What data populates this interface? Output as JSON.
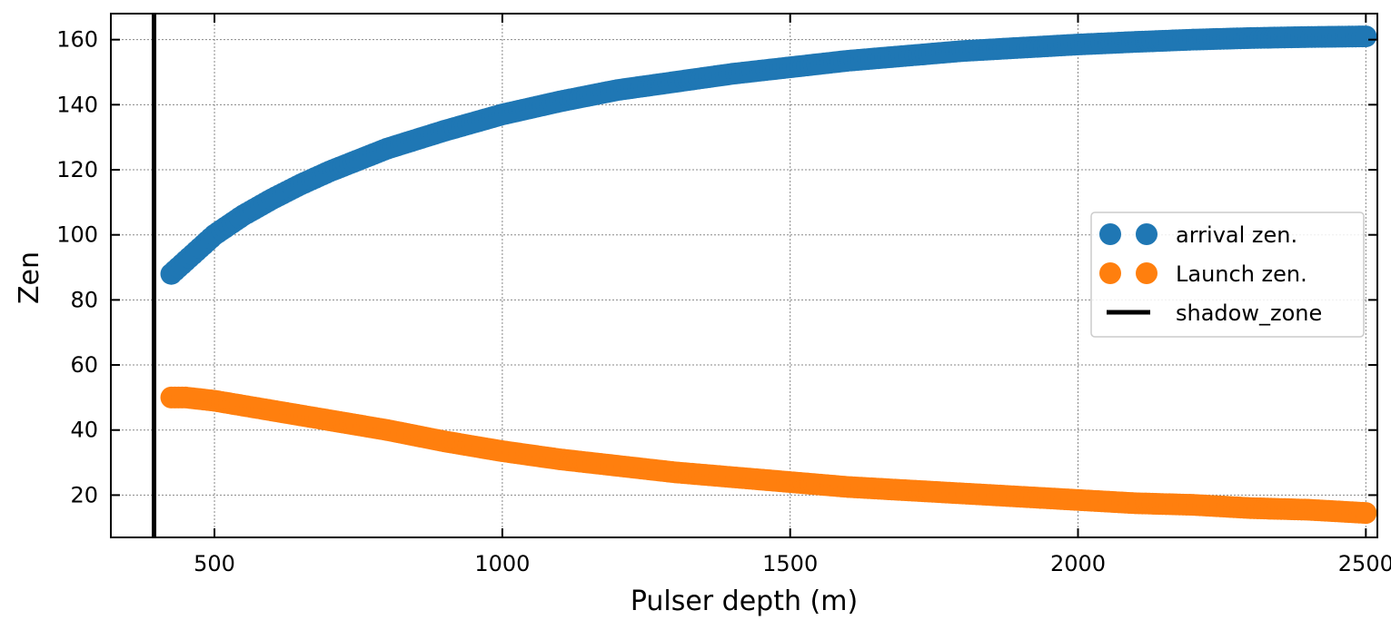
{
  "chart_data": {
    "type": "scatter",
    "xlabel": "Pulser depth (m)",
    "ylabel": "Zen",
    "xlim": [
      320,
      2520
    ],
    "ylim": [
      7,
      168
    ],
    "x_ticks": [
      500,
      1000,
      1500,
      2000,
      2500
    ],
    "x_tick_labels": [
      "500",
      "1000",
      "1500",
      "2000",
      "2500"
    ],
    "y_ticks": [
      20,
      40,
      60,
      80,
      100,
      120,
      140,
      160
    ],
    "y_tick_labels": [
      "20",
      "40",
      "60",
      "80",
      "100",
      "120",
      "140",
      "160"
    ],
    "grid": true,
    "legend_position": "center-right",
    "vline": {
      "name": "shadow_zone",
      "x": 395,
      "color": "#000000"
    },
    "series": [
      {
        "name": "arrival zen.",
        "color": "#1f77b4",
        "x": [
          425,
          450,
          500,
          550,
          600,
          650,
          700,
          800,
          900,
          1000,
          1100,
          1200,
          1300,
          1400,
          1500,
          1600,
          1700,
          1800,
          1900,
          2000,
          2100,
          2200,
          2300,
          2400,
          2500
        ],
        "y": [
          88,
          92,
          100,
          106,
          111,
          115.5,
          119.5,
          126.5,
          132,
          137,
          141,
          144.5,
          147,
          149.5,
          151.5,
          153.5,
          155,
          156.5,
          157.5,
          158.5,
          159.3,
          160,
          160.5,
          160.8,
          161
        ]
      },
      {
        "name": "Launch zen.",
        "color": "#ff7f0e",
        "x": [
          425,
          450,
          500,
          550,
          600,
          650,
          700,
          800,
          900,
          1000,
          1100,
          1200,
          1300,
          1400,
          1500,
          1600,
          1700,
          1800,
          1900,
          2000,
          2100,
          2200,
          2300,
          2400,
          2500
        ],
        "y": [
          50,
          50,
          49,
          47.5,
          46,
          44.5,
          43,
          40,
          36.5,
          33.5,
          31,
          29,
          27,
          25.5,
          24,
          22.5,
          21.5,
          20.5,
          19.5,
          18.5,
          17.5,
          17,
          16,
          15.5,
          14.5
        ]
      }
    ]
  }
}
